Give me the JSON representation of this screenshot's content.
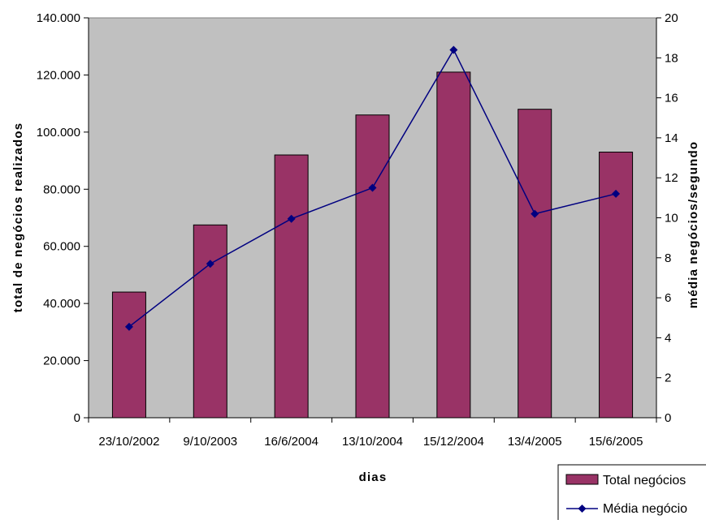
{
  "chart_data": {
    "type": "bar",
    "categories": [
      "23/10/2002",
      "9/10/2003",
      "16/6/2004",
      "13/10/2004",
      "15/12/2004",
      "13/4/2005",
      "15/6/2005"
    ],
    "series": [
      {
        "name": "Total negócios",
        "type": "bar",
        "axis": "left",
        "color": "#993366",
        "values": [
          44000,
          67500,
          92000,
          106000,
          121000,
          108000,
          93000
        ]
      },
      {
        "name": "Média negócio",
        "type": "line",
        "axis": "right",
        "color": "#000080",
        "marker": "diamond",
        "values": [
          4.55,
          7.7,
          9.95,
          11.5,
          18.4,
          10.2,
          11.2
        ]
      }
    ],
    "xlabel": "dias",
    "ylabel_left": "total de negócios realizados",
    "ylabel_right": "média negócios/segundo",
    "ylim_left": [
      0,
      140000
    ],
    "yticks_left": [
      "0",
      "20.000",
      "40.000",
      "60.000",
      "80.000",
      "100.000",
      "120.000",
      "140.000"
    ],
    "ylim_right": [
      0,
      20
    ],
    "yticks_right": [
      "0",
      "2",
      "4",
      "6",
      "8",
      "10",
      "12",
      "14",
      "16",
      "18",
      "20"
    ],
    "plot_background": "#c0c0c0",
    "grid": false,
    "legend_position": "bottom-right"
  }
}
